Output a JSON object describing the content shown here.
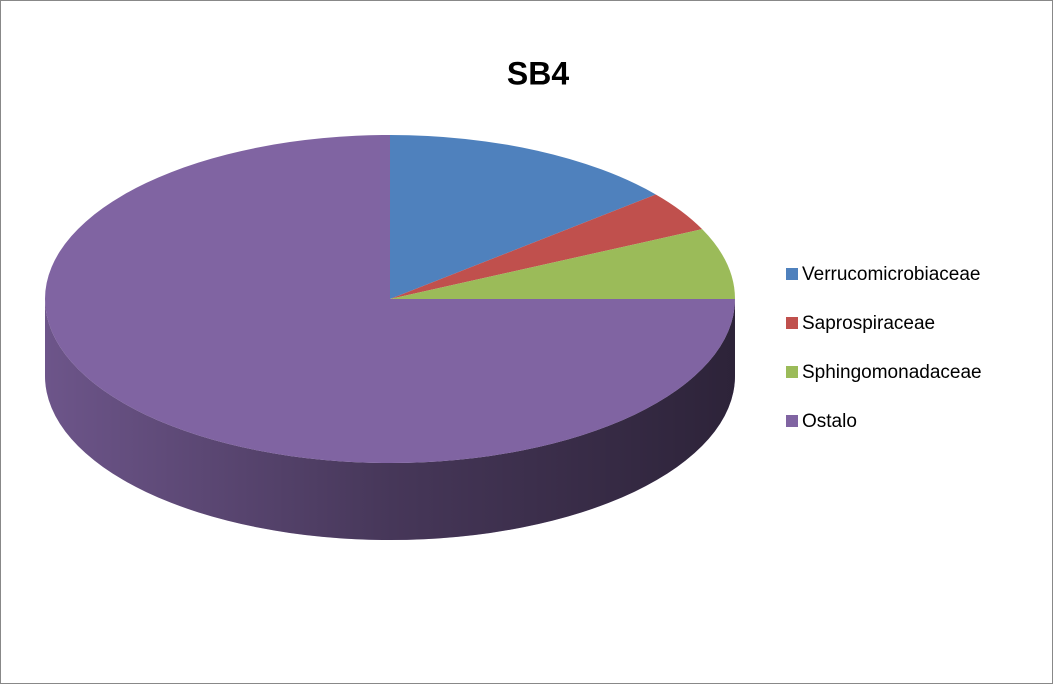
{
  "chart_data": {
    "type": "pie",
    "title": "SB4",
    "three_d": true,
    "categories": [
      "Verrucomicrobiaceae",
      "Saprospiraceae",
      "Sphingomonadaceae",
      "Ostalo"
    ],
    "values": [
      14,
      4,
      7,
      75
    ],
    "colors": [
      "#4f81bd",
      "#c0504d",
      "#9bbb59",
      "#8064a2"
    ],
    "legend": "right"
  }
}
